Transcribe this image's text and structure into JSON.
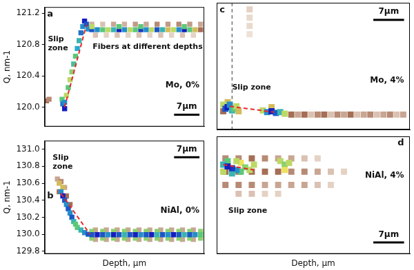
{
  "chart_data": [
    {
      "type": "heatmap",
      "panel_label": "a",
      "sample_label": "Mo, 0%",
      "annotations": [
        "Slip zone",
        "Fibers at different depths"
      ],
      "y_label": "Q, nm-1",
      "xlim": [
        0,
        44
      ],
      "ylim": [
        119.75,
        121.28
      ],
      "yticks": [
        {
          "value": 120,
          "label": "120.0"
        },
        120.4,
        120.8,
        121.2
      ],
      "tick_labels": "y",
      "grid": false,
      "scale_bar": {
        "label": "7μm",
        "length": 7
      },
      "trend": {
        "x": [
          5.5,
          11.5
        ],
        "values": [
          120.0,
          121.05
        ],
        "color": "#e8262a",
        "line_style": "dashed"
      },
      "cells": [
        [
          13,
          121.06,
          0.18
        ],
        [
          16,
          121.06,
          0.15
        ],
        [
          19,
          121.06,
          0.2
        ],
        [
          22,
          121.06,
          0.18
        ],
        [
          25,
          121.06,
          0.22
        ],
        [
          28,
          121.06,
          0.2
        ],
        [
          31,
          121.06,
          0.25
        ],
        [
          34,
          121.06,
          0.22
        ],
        [
          37,
          121.06,
          0.25
        ],
        [
          40,
          121.06,
          0.22
        ],
        [
          43,
          121.06,
          0.2
        ],
        [
          14,
          120.92,
          0.15
        ],
        [
          17,
          120.92,
          0.12
        ],
        [
          20,
          120.92,
          0.15
        ],
        [
          23,
          120.92,
          0.12
        ],
        [
          26,
          120.92,
          0.15
        ],
        [
          29,
          120.92,
          0.12
        ],
        [
          32,
          120.92,
          0.15
        ],
        [
          35,
          120.92,
          0.12
        ],
        [
          38,
          120.92,
          0.15
        ],
        [
          41,
          120.92,
          0.12
        ],
        [
          0.5,
          120.08,
          0.3
        ],
        [
          1.2,
          120.1,
          0.25
        ],
        [
          4.8,
          120.1,
          0.6
        ],
        [
          5.0,
          120.04,
          0.85
        ],
        [
          5.5,
          119.98,
          1.0
        ],
        [
          5.5,
          120.06,
          0.8
        ],
        [
          6.0,
          120.15,
          0.5
        ],
        [
          6.5,
          120.25,
          0.6
        ],
        [
          7.0,
          120.35,
          0.5
        ],
        [
          7.5,
          120.45,
          0.55
        ],
        [
          8.0,
          120.55,
          0.65
        ],
        [
          8.5,
          120.65,
          0.6
        ],
        [
          9.0,
          120.75,
          0.75
        ],
        [
          9.5,
          120.85,
          0.7
        ],
        [
          10.0,
          120.95,
          0.85
        ],
        [
          10.5,
          121.03,
          0.8
        ],
        [
          11.0,
          121.1,
          1.0
        ],
        [
          11.5,
          121.06,
          0.9
        ],
        [
          12.0,
          121.0,
          0.8
        ],
        [
          13,
          120.99,
          0.9
        ],
        [
          14.5,
          120.99,
          0.8
        ],
        [
          16,
          120.99,
          0.6
        ],
        [
          17.5,
          120.99,
          0.5
        ],
        [
          19,
          120.99,
          0.7
        ],
        [
          20.5,
          120.99,
          1.0
        ],
        [
          22,
          120.99,
          0.8
        ],
        [
          23.5,
          120.99,
          0.5
        ],
        [
          25,
          120.99,
          0.6
        ],
        [
          26.5,
          120.99,
          0.95
        ],
        [
          28,
          120.99,
          0.8
        ],
        [
          29.5,
          120.99,
          0.5
        ],
        [
          31,
          120.99,
          0.9
        ],
        [
          32.5,
          120.99,
          0.7
        ],
        [
          34,
          120.99,
          0.4
        ],
        [
          35.5,
          120.99,
          0.5
        ],
        [
          37,
          120.99,
          0.8
        ],
        [
          38.5,
          120.99,
          1.0
        ],
        [
          40,
          120.99,
          0.6
        ],
        [
          41.5,
          120.99,
          0.4
        ],
        [
          43,
          120.99,
          0.3
        ],
        [
          13,
          121.03,
          0.5
        ],
        [
          20.5,
          121.03,
          0.6
        ],
        [
          26.5,
          121.03,
          0.6
        ],
        [
          38.5,
          121.03,
          0.6
        ]
      ]
    },
    {
      "type": "heatmap",
      "panel_label": "b",
      "sample_label": "NiAl, 0%",
      "annotations": [
        "Slip zone"
      ],
      "y_label": "Q, nm-1",
      "x_label": "Depth, μm",
      "xlim": [
        0,
        44
      ],
      "ylim": [
        129.77,
        131.1
      ],
      "yticks": [
        129.8,
        {
          "value": 130,
          "label": "130.0"
        },
        130.2,
        130.4,
        130.6,
        130.8,
        {
          "value": 131,
          "label": "131.0"
        }
      ],
      "tick_labels": "y",
      "grid": false,
      "scale_bar": {
        "label": "7μm",
        "length": 7
      },
      "trend": {
        "x": [
          4.5,
          12.5
        ],
        "values": [
          130.48,
          130.0
        ],
        "color": "#e8262a",
        "line_style": "dashed"
      },
      "cells": [
        [
          3.5,
          130.65,
          0.2
        ],
        [
          4.5,
          130.62,
          0.25
        ],
        [
          5.5,
          130.55,
          0.2
        ],
        [
          14,
          129.94,
          0.2
        ],
        [
          17,
          129.94,
          0.2
        ],
        [
          20,
          129.94,
          0.2
        ],
        [
          23,
          129.94,
          0.2
        ],
        [
          26,
          129.94,
          0.2
        ],
        [
          29,
          129.94,
          0.2
        ],
        [
          32,
          129.94,
          0.2
        ],
        [
          35,
          129.94,
          0.2
        ],
        [
          38,
          129.94,
          0.2
        ],
        [
          41,
          129.94,
          0.2
        ],
        [
          14,
          130.05,
          0.2
        ],
        [
          17,
          130.05,
          0.2
        ],
        [
          20,
          130.05,
          0.2
        ],
        [
          23,
          130.05,
          0.2
        ],
        [
          26,
          130.05,
          0.2
        ],
        [
          29,
          130.05,
          0.2
        ],
        [
          32,
          130.05,
          0.2
        ],
        [
          35,
          130.05,
          0.2
        ],
        [
          38,
          130.05,
          0.2
        ],
        [
          41,
          130.05,
          0.2
        ],
        [
          4.0,
          130.5,
          0.3
        ],
        [
          5.0,
          130.55,
          0.4
        ],
        [
          6.0,
          130.45,
          0.3
        ],
        [
          7.0,
          130.35,
          0.3
        ],
        [
          4.0,
          130.6,
          0.4
        ],
        [
          4.5,
          130.5,
          0.8
        ],
        [
          5.0,
          130.45,
          1.0
        ],
        [
          5.5,
          130.4,
          0.9
        ],
        [
          6.0,
          130.35,
          0.8
        ],
        [
          6.5,
          130.3,
          0.9
        ],
        [
          7.0,
          130.25,
          0.8
        ],
        [
          7.5,
          130.2,
          0.9
        ],
        [
          8.0,
          130.15,
          0.7
        ],
        [
          8.5,
          130.12,
          0.6
        ],
        [
          9.0,
          130.08,
          0.6
        ],
        [
          10.0,
          130.05,
          0.7
        ],
        [
          11.0,
          130.02,
          0.8
        ],
        [
          12.0,
          130.0,
          0.9
        ],
        [
          13,
          129.955,
          0.55
        ],
        [
          16,
          129.955,
          0.55
        ],
        [
          19,
          129.955,
          0.55
        ],
        [
          22,
          129.955,
          0.55
        ],
        [
          25,
          129.955,
          0.55
        ],
        [
          28,
          129.955,
          0.55
        ],
        [
          31,
          129.955,
          0.55
        ],
        [
          34,
          129.955,
          0.55
        ],
        [
          37,
          129.955,
          0.55
        ],
        [
          40,
          129.955,
          0.55
        ],
        [
          43,
          129.955,
          0.55
        ],
        [
          13,
          130.035,
          0.55
        ],
        [
          16,
          130.035,
          0.55
        ],
        [
          19,
          130.035,
          0.55
        ],
        [
          22,
          130.035,
          0.55
        ],
        [
          25,
          130.035,
          0.55
        ],
        [
          28,
          130.035,
          0.55
        ],
        [
          31,
          130.035,
          0.55
        ],
        [
          34,
          130.035,
          0.55
        ],
        [
          37,
          130.035,
          0.55
        ],
        [
          40,
          130.035,
          0.55
        ],
        [
          43,
          130.035,
          0.55
        ],
        [
          13,
          129.995,
          0.9
        ],
        [
          14.5,
          129.995,
          1.0
        ],
        [
          16,
          129.995,
          0.9
        ],
        [
          17.5,
          129.995,
          0.8
        ],
        [
          19,
          129.995,
          1.0
        ],
        [
          20.5,
          129.995,
          0.9
        ],
        [
          22,
          129.995,
          0.7
        ],
        [
          23.5,
          129.995,
          0.9
        ],
        [
          25,
          129.995,
          1.0
        ],
        [
          26.5,
          129.995,
          0.8
        ],
        [
          28,
          129.995,
          0.9
        ],
        [
          29.5,
          129.995,
          1.0
        ],
        [
          31,
          129.995,
          0.7
        ],
        [
          32.5,
          129.995,
          0.9
        ],
        [
          34,
          129.995,
          0.8
        ],
        [
          35.5,
          129.995,
          1.0
        ],
        [
          37,
          129.995,
          0.9
        ],
        [
          38.5,
          129.995,
          0.7
        ],
        [
          40,
          129.995,
          0.9
        ],
        [
          41.5,
          129.995,
          0.8
        ],
        [
          43,
          129.995,
          0.6
        ]
      ]
    },
    {
      "type": "heatmap",
      "panel_label": "c",
      "sample_label": "Mo, 4%",
      "annotations": [
        "Slip zone"
      ],
      "xlim": [
        0,
        44
      ],
      "ylim": [
        119.75,
        121.28
      ],
      "tick_labels": false,
      "grid": false,
      "scale_bar": {
        "label": "7μm",
        "length": 7
      },
      "reference_lines": [
        {
          "x": 3.5,
          "line_style": "dashed"
        }
      ],
      "trend": {
        "x": [
          3.0,
          13.0
        ],
        "values": [
          120.03,
          119.96
        ],
        "color": "#e8262a",
        "line_style": "dashed"
      },
      "cells": [
        [
          7.5,
          121.2,
          0.12
        ],
        [
          7.5,
          121.1,
          0.1
        ],
        [
          7.5,
          121.0,
          0.1
        ],
        [
          7.5,
          120.9,
          0.08
        ],
        [
          17,
          119.93,
          0.3
        ],
        [
          18.5,
          119.93,
          0.2
        ],
        [
          20,
          119.93,
          0.3
        ],
        [
          21.5,
          119.93,
          0.15
        ],
        [
          23,
          119.93,
          0.25
        ],
        [
          24.5,
          119.93,
          0.3
        ],
        [
          26,
          119.93,
          0.15
        ],
        [
          27.5,
          119.93,
          0.25
        ],
        [
          29,
          119.93,
          0.2
        ],
        [
          30.5,
          119.93,
          0.3
        ],
        [
          32,
          119.93,
          0.15
        ],
        [
          33.5,
          119.93,
          0.2
        ],
        [
          35,
          119.93,
          0.25
        ],
        [
          36.5,
          119.93,
          0.15
        ],
        [
          38,
          119.93,
          0.2
        ],
        [
          39.5,
          119.93,
          0.25
        ],
        [
          41,
          119.93,
          0.15
        ],
        [
          42.5,
          119.93,
          0.2
        ],
        [
          1.5,
          119.97,
          0.3
        ],
        [
          2.5,
          120.08,
          0.4
        ],
        [
          1.5,
          120.05,
          0.5
        ],
        [
          2.0,
          120.0,
          0.9
        ],
        [
          2.5,
          120.02,
          1.0
        ],
        [
          3.0,
          120.05,
          0.8
        ],
        [
          3.5,
          119.98,
          0.7
        ],
        [
          4.0,
          120.0,
          0.6
        ],
        [
          4.5,
          120.03,
          0.5
        ],
        [
          5.0,
          119.97,
          0.4
        ],
        [
          12.5,
          120.02,
          0.4
        ],
        [
          10.5,
          119.98,
          0.5
        ],
        [
          11.5,
          119.96,
          0.8
        ],
        [
          12.5,
          119.97,
          1.0
        ],
        [
          13.5,
          119.95,
          0.9
        ],
        [
          14.5,
          119.96,
          0.7
        ],
        [
          15.5,
          119.94,
          0.5
        ]
      ]
    },
    {
      "type": "heatmap",
      "panel_label": "d",
      "sample_label": "NiAl, 4%",
      "annotations": [
        "Slip zone"
      ],
      "x_label": "Depth, μm",
      "xlim": [
        0,
        44
      ],
      "ylim": [
        129.77,
        131.1
      ],
      "tick_labels": false,
      "grid": false,
      "scale_bar": {
        "label": "7μm",
        "length": 7
      },
      "trend": {
        "x": [
          1.5,
          8.5
        ],
        "values": [
          130.78,
          130.72
        ],
        "color": "#e8262a",
        "line_style": "dashed"
      },
      "cells": [
        [
          2,
          130.85,
          0.25
        ],
        [
          5,
          130.85,
          0.25
        ],
        [
          8,
          130.85,
          0.3
        ],
        [
          11,
          130.85,
          0.25
        ],
        [
          14,
          130.85,
          0.2
        ],
        [
          17,
          130.85,
          0.2
        ],
        [
          20,
          130.85,
          0.15
        ],
        [
          23,
          130.85,
          0.12
        ],
        [
          2,
          130.7,
          0.3
        ],
        [
          5,
          130.7,
          0.3
        ],
        [
          8,
          130.7,
          0.3
        ],
        [
          11,
          130.7,
          0.3
        ],
        [
          14,
          130.7,
          0.3
        ],
        [
          17,
          130.7,
          0.25
        ],
        [
          20,
          130.7,
          0.25
        ],
        [
          23,
          130.7,
          0.2
        ],
        [
          26,
          130.7,
          0.15
        ],
        [
          29,
          130.7,
          0.12
        ],
        [
          2,
          130.55,
          0.25
        ],
        [
          5,
          130.55,
          0.25
        ],
        [
          8,
          130.55,
          0.25
        ],
        [
          11,
          130.55,
          0.2
        ],
        [
          14,
          130.55,
          0.2
        ],
        [
          17,
          130.55,
          0.2
        ],
        [
          20,
          130.55,
          0.2
        ],
        [
          23,
          130.55,
          0.15
        ],
        [
          26,
          130.55,
          0.12
        ],
        [
          5,
          130.45,
          0.15
        ],
        [
          8,
          130.45,
          0.15
        ],
        [
          11,
          130.45,
          0.12
        ],
        [
          14,
          130.45,
          0.12
        ],
        [
          14.5,
          130.82,
          0.5
        ],
        [
          15.5,
          130.78,
          0.55
        ],
        [
          16.5,
          130.8,
          0.5
        ],
        [
          15.5,
          130.72,
          0.45
        ],
        [
          1.5,
          130.7,
          0.5
        ],
        [
          5.5,
          130.8,
          0.45
        ],
        [
          8.5,
          130.78,
          0.5
        ],
        [
          7.5,
          130.72,
          0.5
        ],
        [
          6.5,
          130.75,
          0.55
        ],
        [
          5.5,
          130.7,
          0.6
        ],
        [
          4.5,
          130.82,
          0.5
        ],
        [
          2.5,
          130.82,
          0.6
        ],
        [
          4.5,
          130.72,
          0.8
        ],
        [
          3.5,
          130.68,
          0.7
        ],
        [
          1.5,
          130.78,
          0.7
        ],
        [
          3.5,
          130.74,
          0.95
        ],
        [
          2.5,
          130.76,
          1.0
        ]
      ]
    }
  ]
}
